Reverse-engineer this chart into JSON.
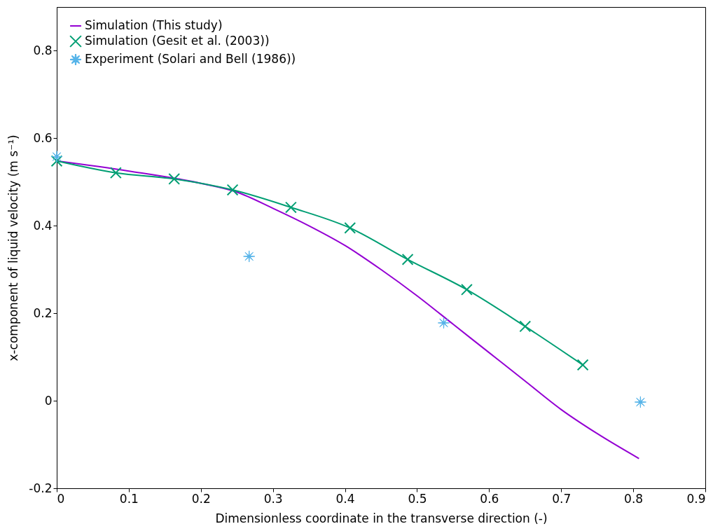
{
  "chart_data": {
    "type": "line",
    "xlabel": "Dimensionless coordinate in the transverse direction (-)",
    "ylabel": "x-component of liquid velocity (m s⁻¹)",
    "xlim": [
      0,
      0.9
    ],
    "xticks": [
      0,
      0.1,
      0.2,
      0.3,
      0.4,
      0.5,
      0.6,
      0.7,
      0.8,
      0.9
    ],
    "ylim": [
      -0.2,
      0.9
    ],
    "yticks": [
      -0.2,
      0,
      0.2,
      0.4,
      0.6,
      0.8
    ],
    "grid": false,
    "legend": "top left",
    "series": [
      {
        "name": "Simulation (This study)",
        "marker": "none",
        "color": "#9400d3",
        "x": [
          0,
          0.1,
          0.2,
          0.25,
          0.3,
          0.35,
          0.4,
          0.45,
          0.5,
          0.55,
          0.6,
          0.65,
          0.7,
          0.75,
          0.808
        ],
        "values": [
          0.548,
          0.525,
          0.497,
          0.477,
          0.44,
          0.4,
          0.355,
          0.3,
          0.24,
          0.175,
          0.11,
          0.045,
          -0.02,
          -0.075,
          -0.132
        ]
      },
      {
        "name": "Simulation (Gesit et al. (2003))",
        "marker": "cross",
        "color": "#009e73",
        "x": [
          0,
          0.082,
          0.163,
          0.244,
          0.325,
          0.407,
          0.487,
          0.569,
          0.65,
          0.73
        ],
        "values": [
          0.548,
          0.521,
          0.507,
          0.482,
          0.442,
          0.395,
          0.323,
          0.254,
          0.17,
          0.082
        ]
      },
      {
        "name": "Experiment (Solari and Bell (1986))",
        "type": "scatter",
        "marker": "star",
        "color": "#56b4e9",
        "x": [
          0,
          0.267,
          0.537,
          0.81
        ],
        "values": [
          0.558,
          0.33,
          0.178,
          -0.003
        ]
      }
    ]
  }
}
